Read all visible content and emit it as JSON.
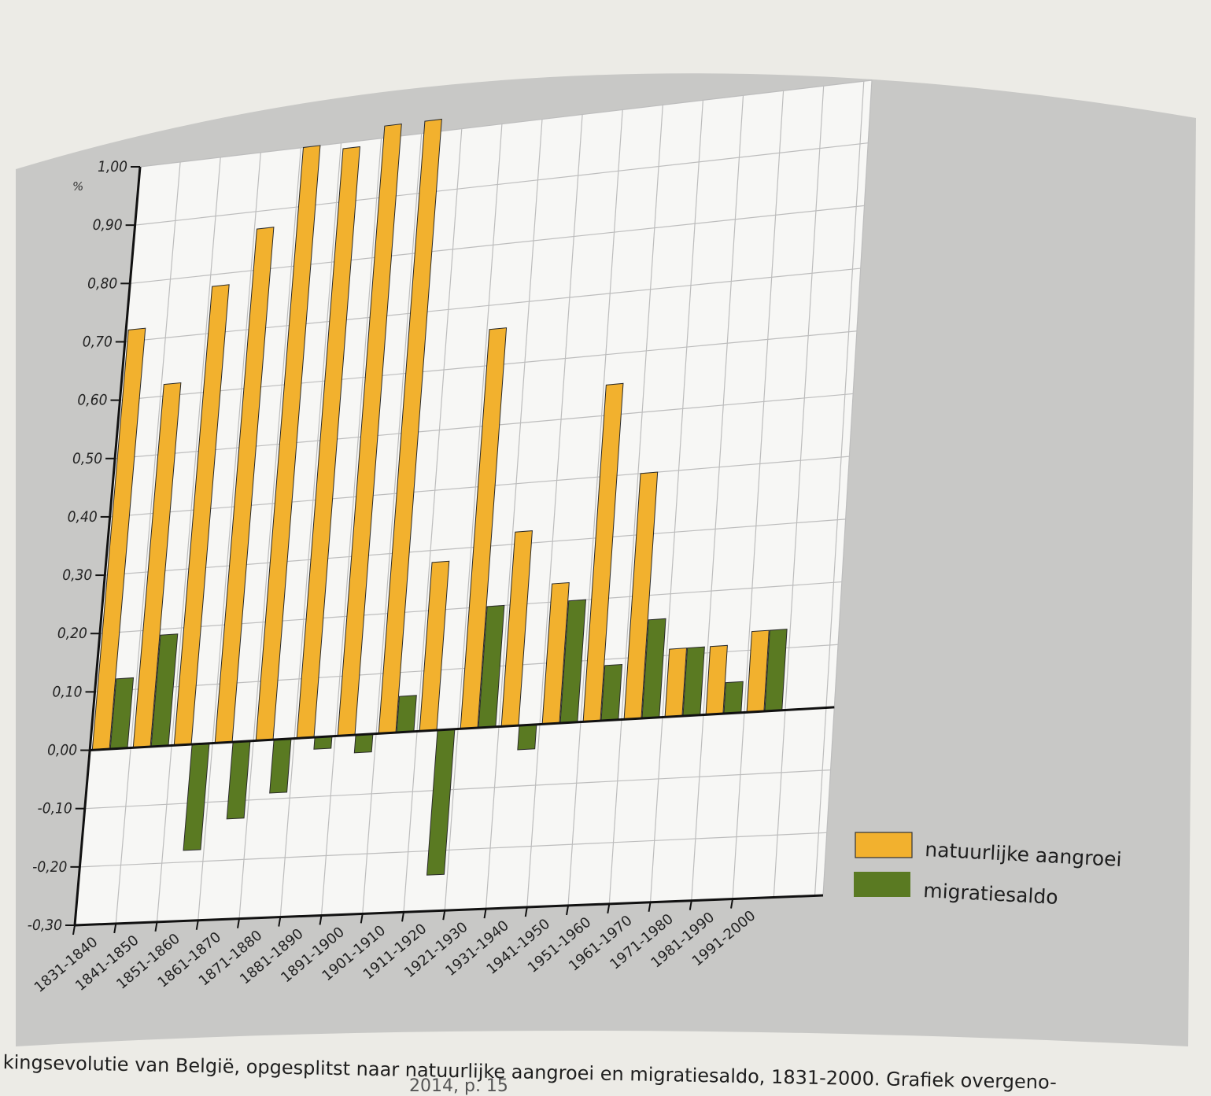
{
  "chart_data": {
    "type": "bar",
    "unit_label": "%",
    "categories": [
      "1831-1840",
      "1841-1850",
      "1851-1860",
      "1861-1870",
      "1871-1880",
      "1881-1890",
      "1891-1900",
      "1901-1910",
      "1911-1920",
      "1921-1930",
      "1931-1940",
      "1941-1950",
      "1951-1960",
      "1961-1970",
      "1971-1980",
      "1981-1990",
      "1991-2000"
    ],
    "series": [
      {
        "name": "natuurlijke aangroei",
        "color": "#f2b12e",
        "values": [
          0.72,
          0.62,
          0.78,
          0.87,
          1.0,
          0.99,
          1.02,
          1.02,
          0.28,
          0.66,
          0.32,
          0.23,
          0.55,
          0.4,
          0.11,
          0.11,
          0.13
        ]
      },
      {
        "name": "migratiesaldo",
        "color": "#5a7a22",
        "values": [
          0.12,
          0.19,
          -0.18,
          -0.13,
          -0.09,
          -0.02,
          -0.03,
          0.06,
          -0.24,
          0.2,
          -0.04,
          0.2,
          0.09,
          0.16,
          0.11,
          0.05,
          0.13
        ]
      }
    ],
    "yticks": [
      "1,00",
      "0,90",
      "0,80",
      "0,70",
      "0,60",
      "0,50",
      "0,40",
      "0,30",
      "0,20",
      "0,10",
      "0,00",
      "-0,10",
      "-0,20",
      "-0,30"
    ],
    "ylim": [
      -0.3,
      1.0
    ],
    "legend_position": "bottom-right"
  },
  "caption": {
    "line1": "kingsevolutie van België, opgesplitst naar natuurlijke aangroei en migratiesaldo, 1831-2000. Grafiek overgeno-",
    "line2": "2014, p. 15"
  }
}
